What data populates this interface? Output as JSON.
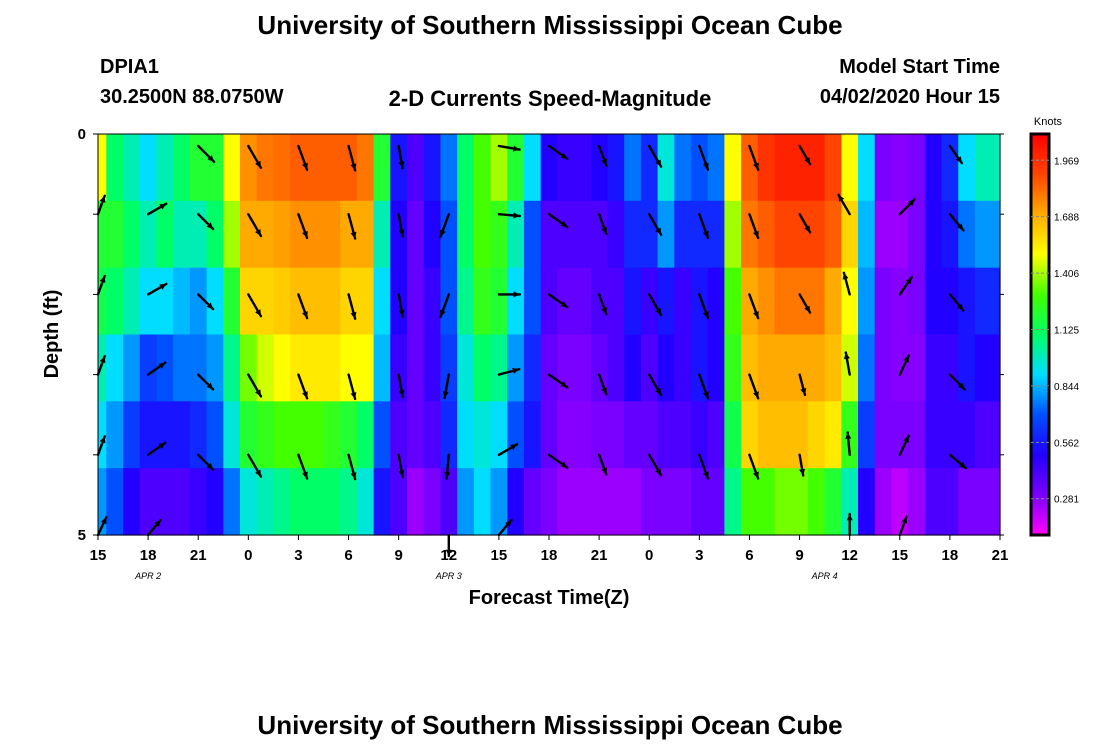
{
  "header": {
    "title": "University of Southern Mississippi Ocean Cube",
    "station_id": "DPIA1",
    "station_coords": "30.2500N 88.0750W",
    "plot_title": "2-D Currents Speed-Magnitude",
    "model_start_label": "Model Start Time",
    "model_start_value": "04/02/2020 Hour 15"
  },
  "footer": {
    "title": "University of Southern Mississippi Ocean Cube"
  },
  "chart_data": {
    "type": "heatmap",
    "title": "2-D Currents Speed-Magnitude",
    "xlabel": "Forecast Time(Z)",
    "ylabel": "Depth (ft)",
    "x_ticks": [
      "15",
      "18",
      "21",
      "0",
      "3",
      "6",
      "9",
      "12",
      "15",
      "18",
      "21",
      "0",
      "3",
      "6",
      "9",
      "12",
      "15",
      "18",
      "21"
    ],
    "x_range_hours": [
      0,
      54
    ],
    "date_labels": [
      {
        "text": "APR 2",
        "hour": 3
      },
      {
        "text": "APR 3",
        "hour": 21
      },
      {
        "text": "APR 4",
        "hour": 43.5
      }
    ],
    "y_ticks": [
      "0",
      "5"
    ],
    "y_range": [
      0,
      5
    ],
    "depths_ft": [
      0,
      1,
      2,
      3,
      4,
      5
    ],
    "colorbar": {
      "label": "Knots",
      "ticks": [
        1.969,
        1.688,
        1.406,
        1.125,
        0.844,
        0.562,
        0.281
      ],
      "tick_labels": [
        "1.969",
        "1.688",
        "1.406",
        "1.125",
        "0.844",
        "0.562",
        "0.281"
      ],
      "range": [
        0.1,
        2.1
      ],
      "colors": [
        "#ff00ff",
        "#7a00ff",
        "#2200ff",
        "#0050ff",
        "#00ddff",
        "#00ff66",
        "#44ff00",
        "#ffff00",
        "#ffaa00",
        "#ff4400",
        "#ff0000"
      ]
    },
    "speed_hours": [
      0,
      1,
      2,
      3,
      4,
      5,
      6,
      7,
      8,
      9,
      10,
      11,
      12,
      13,
      14,
      15,
      16,
      17,
      18,
      19,
      20,
      21,
      22,
      23,
      24,
      25,
      26,
      27,
      28,
      29,
      30,
      31,
      32,
      33,
      34,
      35,
      36,
      37,
      38,
      39,
      40,
      41,
      42,
      43,
      44,
      45,
      46,
      47,
      48,
      49,
      50,
      51,
      52,
      53,
      54
    ],
    "speed_by_depth": [
      [
        1.5,
        1.1,
        1.0,
        0.9,
        1.0,
        1.1,
        1.2,
        1.2,
        1.5,
        1.75,
        1.8,
        1.82,
        1.85,
        1.85,
        1.85,
        1.85,
        1.8,
        1.2,
        0.55,
        0.4,
        0.55,
        0.75,
        1.1,
        1.3,
        1.4,
        1.2,
        0.9,
        0.5,
        0.45,
        0.45,
        0.5,
        0.55,
        0.75,
        0.6,
        0.95,
        0.75,
        0.7,
        0.75,
        1.5,
        1.85,
        1.95,
        2.0,
        2.0,
        2.0,
        1.9,
        1.5,
        0.9,
        0.3,
        0.28,
        0.3,
        0.5,
        0.6,
        0.9,
        1.0,
        1.0
      ],
      [
        1.2,
        1.2,
        1.1,
        1.0,
        1.1,
        1.0,
        1.0,
        1.1,
        1.4,
        1.7,
        1.7,
        1.72,
        1.75,
        1.75,
        1.75,
        1.7,
        1.7,
        1.0,
        0.5,
        0.35,
        0.5,
        0.7,
        1.1,
        1.3,
        1.25,
        1.0,
        0.7,
        0.4,
        0.4,
        0.4,
        0.4,
        0.45,
        0.6,
        0.6,
        0.8,
        0.6,
        0.6,
        0.6,
        1.4,
        1.8,
        1.85,
        1.9,
        1.9,
        1.9,
        1.85,
        1.6,
        0.85,
        0.25,
        0.25,
        0.3,
        0.5,
        0.55,
        0.75,
        0.8,
        0.8
      ],
      [
        1.15,
        1.1,
        1.0,
        0.9,
        0.9,
        0.85,
        0.8,
        0.9,
        1.2,
        1.6,
        1.6,
        1.62,
        1.65,
        1.65,
        1.65,
        1.6,
        1.6,
        0.9,
        0.5,
        0.35,
        0.45,
        0.7,
        1.05,
        1.25,
        1.2,
        0.9,
        0.7,
        0.4,
        0.35,
        0.35,
        0.4,
        0.4,
        0.55,
        0.45,
        0.55,
        0.45,
        0.55,
        0.5,
        1.3,
        1.7,
        1.75,
        1.8,
        1.8,
        1.8,
        1.7,
        1.5,
        0.8,
        0.3,
        0.28,
        0.3,
        0.5,
        0.5,
        0.55,
        0.6,
        0.6
      ],
      [
        1.0,
        0.9,
        0.8,
        0.65,
        0.7,
        0.75,
        0.75,
        0.8,
        1.05,
        1.35,
        1.45,
        1.5,
        1.55,
        1.55,
        1.55,
        1.5,
        1.5,
        0.85,
        0.45,
        0.35,
        0.45,
        0.65,
        0.95,
        1.1,
        1.05,
        0.8,
        0.6,
        0.35,
        0.3,
        0.3,
        0.35,
        0.4,
        0.5,
        0.4,
        0.5,
        0.45,
        0.55,
        0.5,
        1.25,
        1.65,
        1.7,
        1.7,
        1.7,
        1.7,
        1.65,
        1.45,
        0.75,
        0.3,
        0.28,
        0.28,
        0.45,
        0.45,
        0.55,
        0.5,
        0.5
      ],
      [
        0.9,
        0.8,
        0.65,
        0.55,
        0.55,
        0.55,
        0.6,
        0.7,
        0.95,
        1.2,
        1.25,
        1.3,
        1.3,
        1.3,
        1.25,
        1.2,
        1.1,
        0.7,
        0.4,
        0.35,
        0.4,
        0.6,
        0.9,
        0.95,
        0.9,
        0.7,
        0.55,
        0.35,
        0.28,
        0.28,
        0.3,
        0.3,
        0.35,
        0.35,
        0.4,
        0.4,
        0.45,
        0.4,
        1.15,
        1.6,
        1.65,
        1.65,
        1.65,
        1.6,
        1.55,
        1.25,
        0.65,
        0.3,
        0.3,
        0.3,
        0.45,
        0.45,
        0.45,
        0.4,
        0.4
      ],
      [
        0.8,
        0.7,
        0.5,
        0.4,
        0.4,
        0.4,
        0.45,
        0.5,
        0.75,
        0.95,
        1.0,
        1.05,
        1.1,
        1.1,
        1.1,
        1.05,
        0.95,
        0.55,
        0.4,
        0.25,
        0.3,
        0.4,
        0.8,
        0.9,
        0.8,
        0.5,
        0.35,
        0.3,
        0.25,
        0.25,
        0.25,
        0.25,
        0.25,
        0.3,
        0.3,
        0.3,
        0.35,
        0.35,
        1.05,
        1.3,
        1.3,
        1.35,
        1.35,
        1.3,
        1.2,
        1.0,
        0.5,
        0.25,
        0.2,
        0.25,
        0.4,
        0.4,
        0.3,
        0.3,
        0.3
      ]
    ],
    "vector_hours": [
      0,
      3,
      6,
      9,
      12,
      15,
      18,
      21,
      24,
      27,
      30,
      33,
      36,
      39,
      42,
      45,
      48,
      51
    ],
    "vector_depths_ft": [
      0,
      1,
      2,
      3,
      4,
      5
    ],
    "vector_dir_deg": [
      [
        null,
        null,
        135,
        150,
        160,
        165,
        170,
        null,
        100,
        125,
        160,
        150,
        160,
        160,
        150,
        null,
        null,
        145
      ],
      [
        20,
        60,
        135,
        150,
        160,
        165,
        170,
        200,
        95,
        125,
        160,
        150,
        160,
        160,
        150,
        330,
        45,
        140
      ],
      [
        20,
        60,
        135,
        150,
        160,
        165,
        170,
        200,
        90,
        125,
        160,
        150,
        160,
        160,
        150,
        345,
        35,
        140
      ],
      [
        20,
        55,
        135,
        150,
        160,
        165,
        170,
        190,
        75,
        125,
        160,
        150,
        160,
        160,
        165,
        350,
        25,
        135
      ],
      [
        20,
        55,
        135,
        150,
        160,
        165,
        170,
        185,
        60,
        125,
        160,
        150,
        160,
        160,
        170,
        355,
        25,
        130
      ],
      [
        25,
        40,
        null,
        null,
        null,
        null,
        null,
        180,
        40,
        null,
        null,
        null,
        null,
        null,
        null,
        0,
        20,
        null
      ]
    ],
    "vector_mag": [
      [
        null,
        null,
        1.6,
        1.8,
        1.8,
        1.8,
        1.6,
        null,
        1.5,
        1.6,
        1.5,
        1.7,
        1.8,
        1.8,
        1.5,
        null,
        null,
        1.5
      ],
      [
        1.4,
        1.5,
        1.5,
        1.8,
        1.8,
        1.8,
        1.6,
        1.7,
        1.5,
        1.6,
        1.5,
        1.7,
        1.8,
        1.8,
        1.5,
        1.6,
        1.5,
        1.5
      ],
      [
        1.4,
        1.5,
        1.5,
        1.8,
        1.8,
        1.8,
        1.6,
        1.7,
        1.5,
        1.6,
        1.5,
        1.7,
        1.8,
        1.8,
        1.5,
        1.6,
        1.5,
        1.5
      ],
      [
        1.4,
        1.5,
        1.5,
        1.8,
        1.8,
        1.8,
        1.6,
        1.7,
        1.5,
        1.6,
        1.5,
        1.7,
        1.8,
        1.8,
        1.5,
        1.6,
        1.5,
        1.5
      ],
      [
        1.4,
        1.5,
        1.5,
        1.8,
        1.8,
        1.8,
        1.6,
        1.7,
        1.5,
        1.6,
        1.5,
        1.7,
        1.8,
        1.8,
        1.5,
        1.6,
        1.5,
        1.5
      ],
      [
        1.4,
        1.4,
        null,
        null,
        null,
        null,
        null,
        1.5,
        1.4,
        null,
        null,
        null,
        null,
        null,
        null,
        1.5,
        1.4,
        null
      ]
    ]
  }
}
